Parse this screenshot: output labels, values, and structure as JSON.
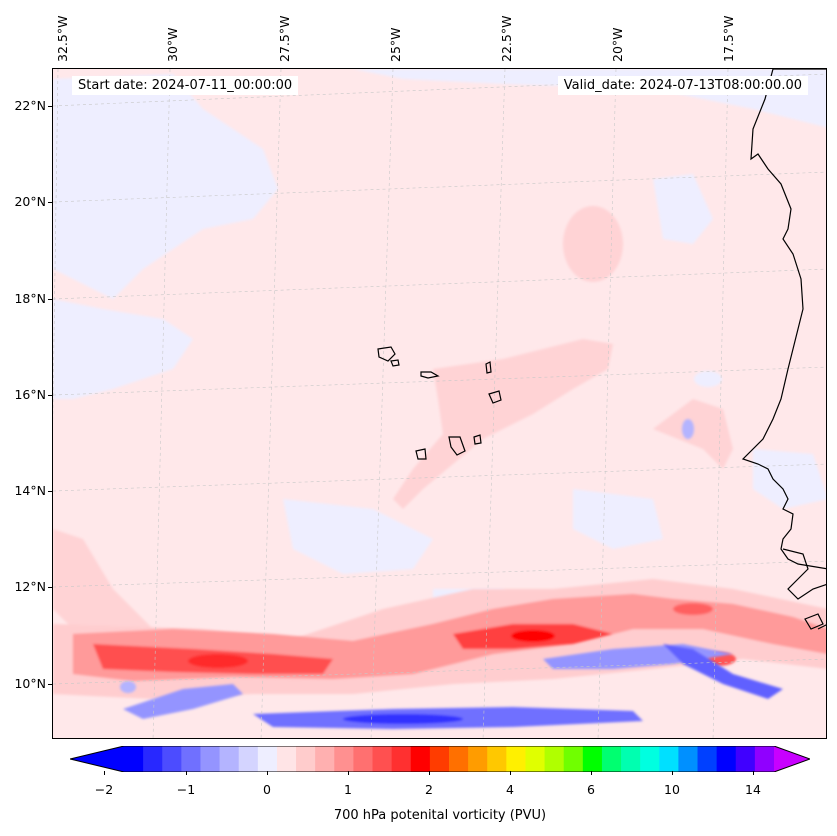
{
  "map": {
    "start_date_text": "Start date: 2024-07-11_00:00:00",
    "valid_date_text": "Valid_date: 2024-07-13T08:00:00.00",
    "lon_labels": [
      "32.5°W",
      "30°W",
      "27.5°W",
      "25°W",
      "22.5°W",
      "20°W",
      "17.5°W"
    ],
    "lat_labels": [
      "22°N",
      "20°N",
      "18°N",
      "16°N",
      "14°N",
      "12°N",
      "10°N"
    ]
  },
  "colorbar": {
    "label": "700 hPa potenital vorticity (PVU)",
    "tick_labels": [
      "−2",
      "−1",
      "0",
      "1",
      "2",
      "4",
      "6",
      "10",
      "14"
    ],
    "colors": [
      "#0000ff",
      "#2828ff",
      "#4c4cff",
      "#7070ff",
      "#9494ff",
      "#b4b4ff",
      "#d4d4ff",
      "#eeeeff",
      "#ffe4e6",
      "#ffcccc",
      "#ffb0b0",
      "#ff9090",
      "#ff7070",
      "#ff5050",
      "#ff3030",
      "#ff0000",
      "#ff3c00",
      "#ff7000",
      "#ff9c00",
      "#ffc800",
      "#fff000",
      "#e0ff00",
      "#b0ff00",
      "#70ff00",
      "#00ff00",
      "#00ff70",
      "#00ffb0",
      "#00ffe0",
      "#00e0ff",
      "#0090ff",
      "#0040ff",
      "#0000ff",
      "#4000ff",
      "#9000ff"
    ],
    "extend_low_color": "#0000ff",
    "extend_high_color": "#c800ff"
  }
}
